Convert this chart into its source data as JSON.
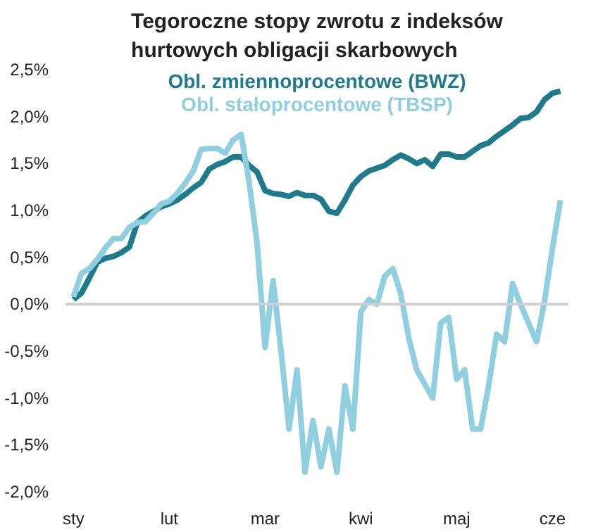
{
  "chart_data": {
    "type": "line",
    "title": "Tegoroczne stopy zwrotu z indeksów\nhurtowych obligacji skarbowych",
    "categories": [
      "sty",
      null,
      null,
      null,
      null,
      null,
      null,
      null,
      null,
      null,
      null,
      null,
      "lut",
      null,
      null,
      null,
      null,
      null,
      null,
      null,
      null,
      null,
      null,
      null,
      "mar",
      null,
      null,
      null,
      null,
      null,
      null,
      null,
      null,
      null,
      null,
      null,
      "kwi",
      null,
      null,
      null,
      null,
      null,
      null,
      null,
      null,
      null,
      null,
      null,
      "maj",
      null,
      null,
      null,
      null,
      null,
      null,
      null,
      null,
      null,
      null,
      null,
      "cze",
      null
    ],
    "ylim": [
      -2.0,
      2.5
    ],
    "yticks": [
      {
        "value": -2.0,
        "label": "-2,0%"
      },
      {
        "value": -1.5,
        "label": "-1,5%"
      },
      {
        "value": -1.0,
        "label": "-1,0%"
      },
      {
        "value": -0.5,
        "label": "-0,5%"
      },
      {
        "value": 0,
        "label": "0,0%"
      },
      {
        "value": 0.5,
        "label": "0,5%"
      },
      {
        "value": 1.0,
        "label": "1,0%"
      },
      {
        "value": 1.5,
        "label": "1,5%"
      },
      {
        "value": 2.0,
        "label": "2,0%"
      },
      {
        "value": 2.5,
        "label": "2,5%"
      }
    ],
    "grid": false,
    "legend": "top",
    "ref_lines": [
      {
        "axis": "y",
        "value": 0,
        "color": "#d0d0d0"
      }
    ],
    "series": [
      {
        "name": "Obl. zmiennoprocentowe (BWZ)",
        "color": "#1f7a8c",
        "values": [
          0.05,
          0.12,
          0.28,
          0.45,
          0.49,
          0.51,
          0.55,
          0.61,
          0.87,
          0.94,
          0.99,
          1.04,
          1.07,
          1.11,
          1.17,
          1.24,
          1.3,
          1.44,
          1.49,
          1.52,
          1.57,
          1.57,
          1.48,
          1.41,
          1.21,
          1.18,
          1.17,
          1.15,
          1.19,
          1.16,
          1.16,
          1.12,
          0.99,
          0.97,
          1.11,
          1.27,
          1.36,
          1.42,
          1.45,
          1.48,
          1.54,
          1.59,
          1.55,
          1.5,
          1.54,
          1.47,
          1.6,
          1.6,
          1.57,
          1.57,
          1.63,
          1.69,
          1.72,
          1.79,
          1.85,
          1.91,
          1.98,
          1.99,
          2.05,
          2.18,
          2.25,
          2.27
        ]
      },
      {
        "name": "Obl. stałoprocentowe (TBSP)",
        "color": "#8fcfe0",
        "values": [
          0.08,
          0.33,
          0.38,
          0.48,
          0.6,
          0.7,
          0.7,
          0.82,
          0.87,
          0.88,
          0.97,
          1.07,
          1.1,
          1.18,
          1.29,
          1.42,
          1.65,
          1.66,
          1.66,
          1.61,
          1.75,
          1.81,
          1.3,
          0.65,
          -0.46,
          0.25,
          -0.5,
          -1.33,
          -0.7,
          -1.79,
          -1.24,
          -1.73,
          -1.33,
          -1.79,
          -0.87,
          -1.33,
          -0.08,
          0.05,
          0.0,
          0.3,
          0.38,
          0.11,
          -0.36,
          -0.7,
          -0.85,
          -1.0,
          -0.2,
          -0.14,
          -0.8,
          -0.7,
          -1.33,
          -1.33,
          -0.87,
          -0.32,
          -0.4,
          0.22,
          0.0,
          -0.2,
          -0.4,
          0.03,
          0.6,
          1.11
        ]
      }
    ]
  }
}
